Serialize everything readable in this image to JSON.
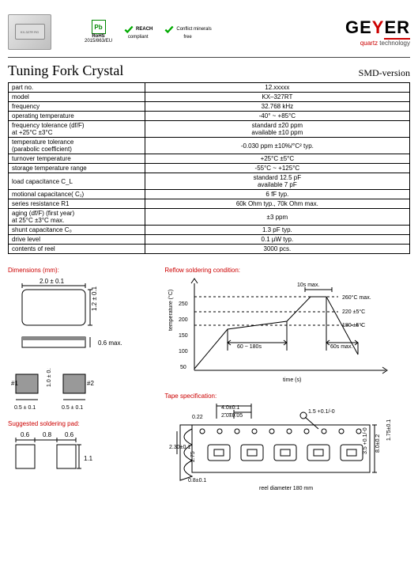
{
  "header": {
    "chip_label": "KX-327R RG",
    "badges": {
      "rohs_label": "RoHS",
      "rohs_sub": "2015/863/EU",
      "rohs_symbol": "Pb",
      "reach_label": "REACH",
      "reach_sub": "compliant",
      "conflict_label": "Conflict minerals",
      "conflict_sub": "free"
    },
    "logo": {
      "brand": "GEYER",
      "tagline_a": "quartz",
      "tagline_b": "technology"
    }
  },
  "title": "Tuning Fork Crystal",
  "version": "SMD-version",
  "spec_rows": [
    {
      "l": "part no.",
      "r": "12.xxxxx"
    },
    {
      "l": "model",
      "r": "KX–327RT"
    },
    {
      "l": "frequency",
      "r": "32.768 kHz"
    },
    {
      "l": "operating temperature",
      "r": "-40° ~ +85°C"
    },
    {
      "l": "frequency tolerance (df/F)\nat +25°C ±3°C",
      "r": "standard ±20 ppm\navailable ±10 ppm"
    },
    {
      "l": "temperature tolerance\n(parabolic coefficient)",
      "r": "-0.030 ppm ±10%/°C² typ."
    },
    {
      "l": "turnover temperature",
      "r": "+25°C ±5°C"
    },
    {
      "l": "storage temperature range",
      "r": "-55°C ~ +125°C"
    },
    {
      "l": "load capacitance C_L",
      "r": "standard 12.5 pF\navailable 7 pF"
    },
    {
      "l": "motional capacitance( C₁)",
      "r": "6 fF typ."
    },
    {
      "l": "series resistance R1",
      "r": "60k Ohm typ., 70k Ohm max."
    },
    {
      "l": "aging (df/F) (first year)\nat 25°C ±3°C max.",
      "r": "±3 ppm"
    },
    {
      "l": "shunt capacitance C₀",
      "r": "1.3 pF typ."
    },
    {
      "l": "drive level",
      "r": "0.1 µW typ."
    },
    {
      "l": "contents of reel",
      "r": "3000 pcs."
    }
  ],
  "sections": {
    "dims": "Dimensions (mm):",
    "reflow": "Reflow soldering condition:",
    "tape": "Tape specification:",
    "pad": "Suggested soldering pad:"
  },
  "dims": {
    "width": "2.0 ± 0.1",
    "height": "1.2 ± 0.1",
    "thick": "0.6 max.",
    "pad_dim": "0.5 ± 0.1",
    "pad_mid": "1.0 ± 0.1",
    "pin1": "#1",
    "pin2": "#2"
  },
  "pad": {
    "a": "0.6",
    "b": "0.8",
    "c": "0.6",
    "h": "1.1"
  },
  "reflow": {
    "ylabel": "temperature (°C)",
    "xlabel": "time (s)",
    "yticks": [
      "50",
      "100",
      "150",
      "200",
      "250"
    ],
    "t_peak": "10s max.",
    "peak": "260°C max.",
    "t220": "220 ±5°C",
    "t180": "180 ±5°C",
    "preheat": "60 ~ 180s",
    "cooldown": "60s max.",
    "color_axis": "#000",
    "color_line": "#000",
    "color_dash": "#000"
  },
  "tape": {
    "p1": "4.0±0.1",
    "p0": "2.0±0.05",
    "d": "0.22",
    "e": "2.30±0.1",
    "f": "0.8±0.1",
    "g": "2.75",
    "w": "8.0±0.2",
    "h": "1.75±0.1",
    "j": "3.5 +0.1/-0",
    "hole": "1.5 +0.1/-0",
    "reel": "reel diameter 180 mm"
  }
}
